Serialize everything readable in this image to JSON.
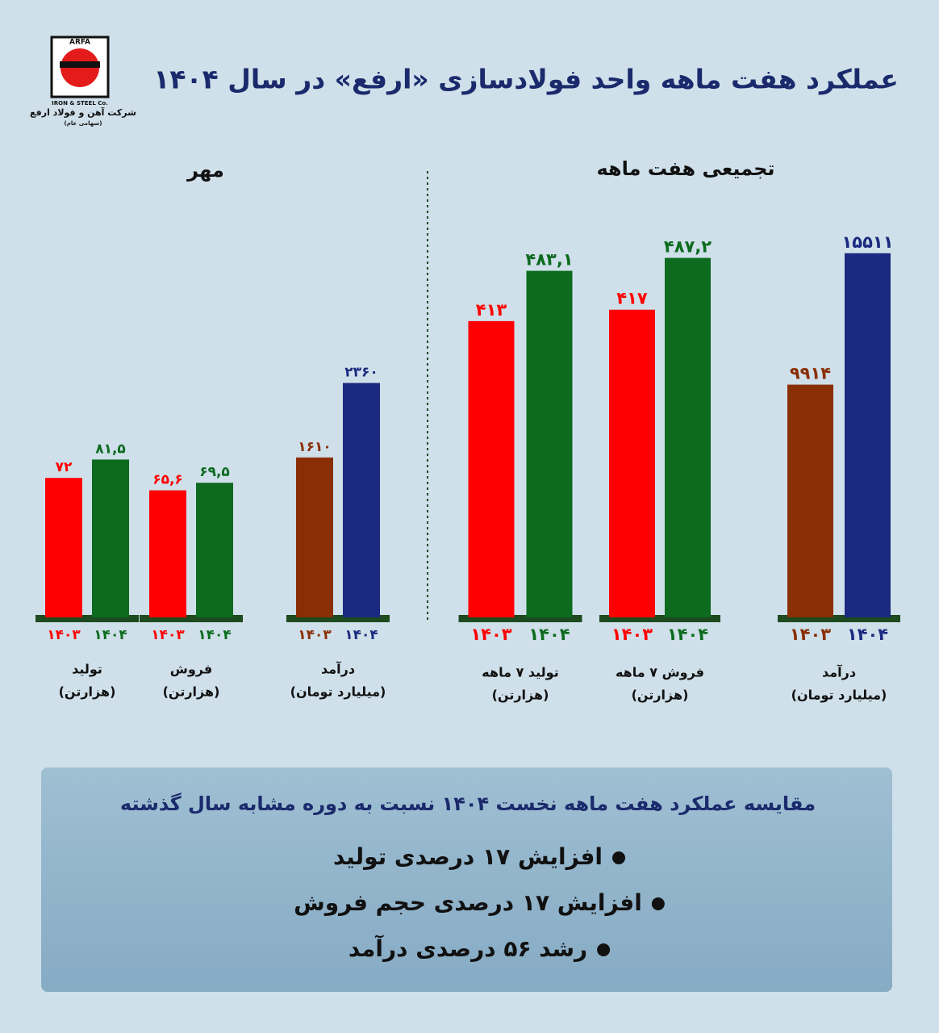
{
  "header": {
    "title": "عملکرد هفت ماهه واحد فولادسازی «ارفع» در سال ۱۴۰۴"
  },
  "logo": {
    "mark": "ARFA",
    "sub": "IRON & STEEL Co.",
    "name": "شرکت آهن و فولاد ارفع",
    "note": "(سهامی عام)"
  },
  "panels": [
    {
      "title": "مهر"
    },
    {
      "title": "تجمیعی هفت ماهه"
    }
  ],
  "chart_data": [
    {
      "type": "bar",
      "label": "تولید",
      "unit": "(هزارتن)",
      "categories": [
        "۱۴۰۳",
        "۱۴۰۴"
      ],
      "values": [
        72,
        81.5
      ],
      "value_labels": [
        "۷۲",
        "۸۱,۵"
      ],
      "colors": [
        "#ff0000",
        "#0c6b1e"
      ],
      "ylim": [
        0,
        200
      ]
    },
    {
      "type": "bar",
      "label": "فروش",
      "unit": "(هزارتن)",
      "categories": [
        "۱۴۰۳",
        "۱۴۰۴"
      ],
      "values": [
        65.6,
        69.5
      ],
      "value_labels": [
        "۶۵,۶",
        "۶۹,۵"
      ],
      "colors": [
        "#ff0000",
        "#0c6b1e"
      ],
      "ylim": [
        0,
        200
      ]
    },
    {
      "type": "bar",
      "label": "درآمد",
      "unit": "(میلیارد تومان)",
      "categories": [
        "۱۴۰۳",
        "۱۴۰۴"
      ],
      "values": [
        1610,
        2360
      ],
      "value_labels": [
        "۱۶۱۰",
        "۲۳۶۰"
      ],
      "colors": [
        "#8a2f05",
        "#1b2a80"
      ],
      "ylim": [
        0,
        3900
      ]
    },
    {
      "type": "bar",
      "label": "تولید ۷ ماهه",
      "unit": "(هزارتن)",
      "categories": [
        "۱۴۰۳",
        "۱۴۰۴"
      ],
      "values": [
        413,
        483.1
      ],
      "value_labels": [
        "۴۱۳",
        "۴۸۳,۱"
      ],
      "colors": [
        "#ff0000",
        "#0c6b1e"
      ],
      "ylim": [
        0,
        540
      ]
    },
    {
      "type": "bar",
      "label": "فروش ۷ ماهه",
      "unit": "(هزارتن)",
      "categories": [
        "۱۴۰۳",
        "۱۴۰۴"
      ],
      "values": [
        417,
        487.2
      ],
      "value_labels": [
        "۴۱۷",
        "۴۸۷,۲"
      ],
      "colors": [
        "#ff0000",
        "#0c6b1e"
      ],
      "ylim": [
        0,
        525
      ]
    },
    {
      "type": "bar",
      "label": "درآمد",
      "unit": "(میلیارد تومان)",
      "categories": [
        "۱۴۰۳",
        "۱۴۰۴"
      ],
      "values": [
        9914,
        15511
      ],
      "value_labels": [
        "۹۹۱۴",
        "۱۵۵۱۱"
      ],
      "colors": [
        "#8a2f05",
        "#1b2a80"
      ],
      "ylim": [
        0,
        16500
      ]
    }
  ],
  "summary": {
    "title": "مقایسه عملکرد هفت ماهه نخست ۱۴۰۴ نسبت به دوره مشابه سال گذشته",
    "items": [
      "افزایش ۱۷ درصدی تولید",
      "افزایش ۱۷ درصدی حجم فروش",
      "رشد ۵۶ درصدی درآمد"
    ]
  }
}
